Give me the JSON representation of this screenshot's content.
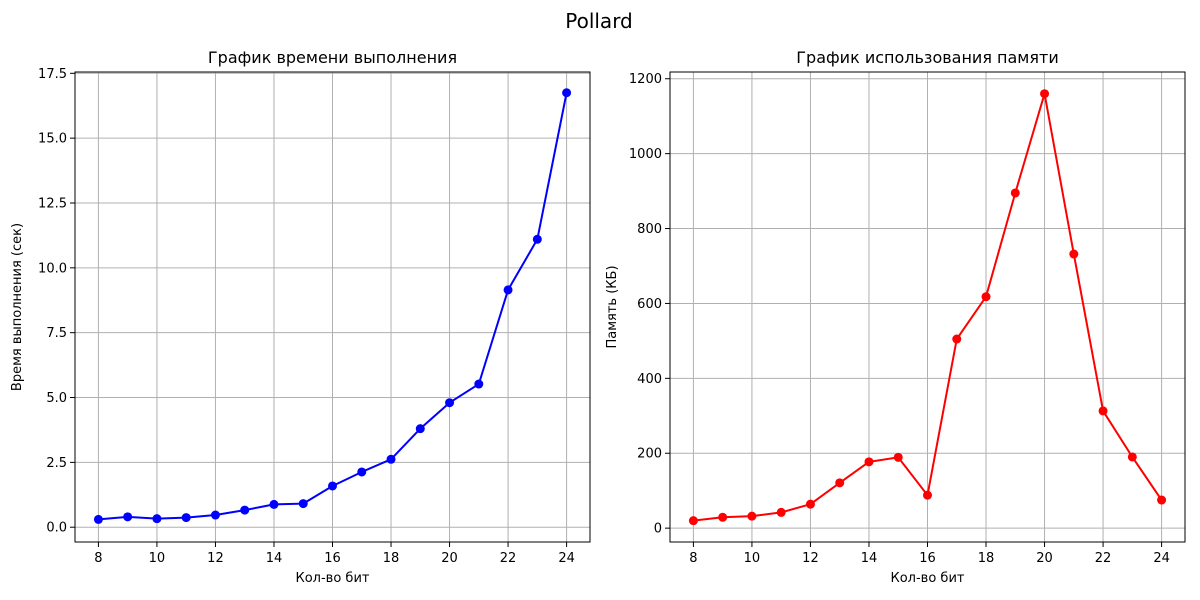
{
  "figure": {
    "suptitle": "Pollard"
  },
  "chart_data": [
    {
      "type": "line",
      "title": "График времени выполнения",
      "xlabel": "Кол-во бит",
      "ylabel": "Время выполнения (сек)",
      "grid": true,
      "xlim": [
        7.2,
        24.8
      ],
      "ylim": [
        -0.57,
        17.55
      ],
      "xticks": [
        8,
        10,
        12,
        14,
        16,
        18,
        20,
        22,
        24
      ],
      "yticks": [
        0.0,
        2.5,
        5.0,
        7.5,
        10.0,
        12.5,
        15.0,
        17.5
      ],
      "ytick_labels": [
        "0.0",
        "2.5",
        "5.0",
        "7.5",
        "10.0",
        "12.5",
        "15.0",
        "17.5"
      ],
      "series": [
        {
          "color": "#0000ff",
          "marker": "circle",
          "x": [
            8,
            9,
            10,
            11,
            12,
            13,
            14,
            15,
            16,
            17,
            18,
            19,
            20,
            21,
            22,
            23,
            24
          ],
          "y": [
            0.3,
            0.4,
            0.33,
            0.37,
            0.47,
            0.66,
            0.88,
            0.91,
            1.59,
            2.13,
            2.62,
            3.8,
            4.8,
            5.52,
            9.15,
            11.1,
            16.75
          ]
        }
      ]
    },
    {
      "type": "line",
      "title": "График использования памяти",
      "xlabel": "Кол-во бит",
      "ylabel": "Память (КБ)",
      "grid": true,
      "xlim": [
        7.2,
        24.8
      ],
      "ylim": [
        -37,
        1218
      ],
      "xticks": [
        8,
        10,
        12,
        14,
        16,
        18,
        20,
        22,
        24
      ],
      "yticks": [
        0,
        200,
        400,
        600,
        800,
        1000,
        1200
      ],
      "ytick_labels": [
        "0",
        "200",
        "400",
        "600",
        "800",
        "1000",
        "1200"
      ],
      "series": [
        {
          "color": "#ff0000",
          "marker": "circle",
          "x": [
            8,
            9,
            10,
            11,
            12,
            13,
            14,
            15,
            16,
            17,
            18,
            19,
            20,
            21,
            22,
            23,
            24
          ],
          "y": [
            20,
            29,
            32,
            42,
            64,
            121,
            177,
            189,
            88,
            505,
            618,
            895,
            1160,
            732,
            313,
            190,
            75
          ]
        }
      ]
    }
  ]
}
